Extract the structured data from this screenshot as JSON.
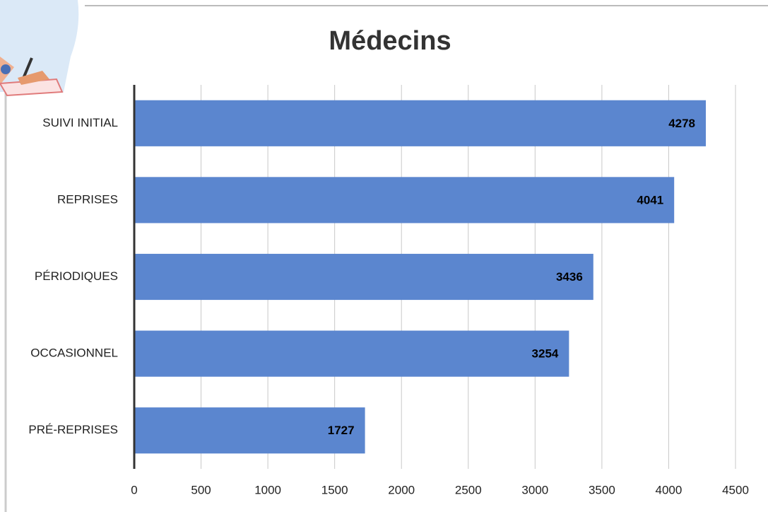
{
  "chart_data": {
    "type": "barh",
    "title": "Médecins",
    "categories": [
      "SUIVI INITIAL",
      "REPRISES",
      "PÉRIODIQUES",
      "OCCASIONNEL",
      "PRÉ-REPRISES"
    ],
    "values": [
      4278,
      4041,
      3436,
      3254,
      1727
    ],
    "color": "#5b86cf",
    "xlim": [
      0,
      4500
    ],
    "xticks": [
      0,
      500,
      1000,
      1500,
      2000,
      2500,
      3000,
      3500,
      4000,
      4500
    ],
    "grid": true
  }
}
